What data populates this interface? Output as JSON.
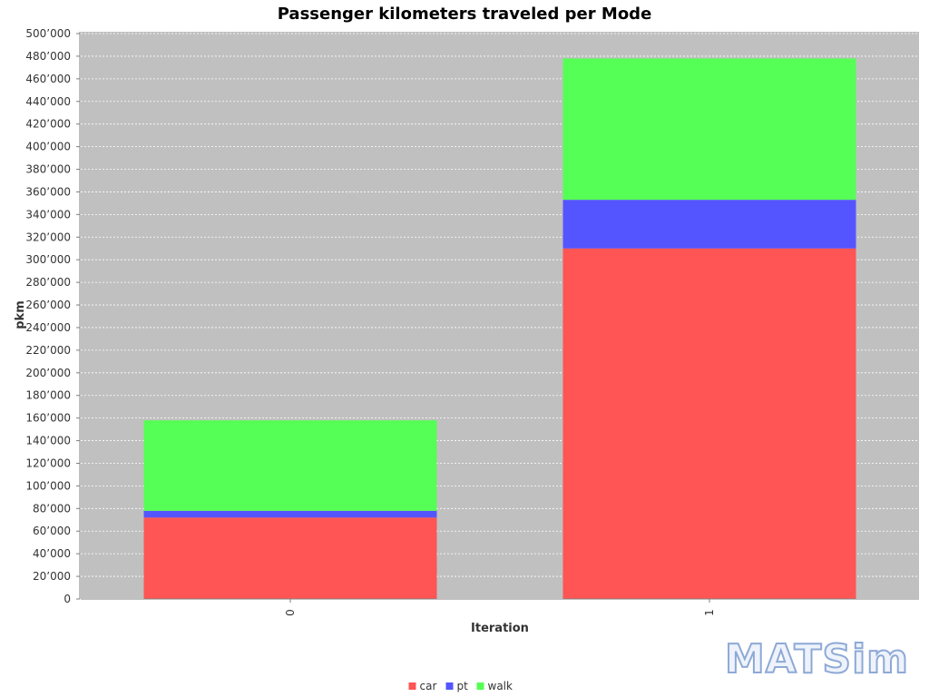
{
  "chart_data": {
    "type": "bar",
    "stacked": true,
    "title": "Passenger kilometers traveled per Mode",
    "xlabel": "Iteration",
    "ylabel": "pkm",
    "categories": [
      "0",
      "1"
    ],
    "series": [
      {
        "name": "car",
        "color": "#ff5555",
        "values": [
          72000,
          310000
        ]
      },
      {
        "name": "pt",
        "color": "#5555ff",
        "values": [
          6000,
          43000
        ]
      },
      {
        "name": "walk",
        "color": "#55ff55",
        "values": [
          80000,
          125000
        ]
      }
    ],
    "ylim": [
      0,
      500000
    ],
    "ytick_step": 20000,
    "grid": true,
    "plot_background": "#c0c0c0",
    "legend_position": "bottom-center"
  },
  "logo": {
    "text": "MATSim"
  }
}
